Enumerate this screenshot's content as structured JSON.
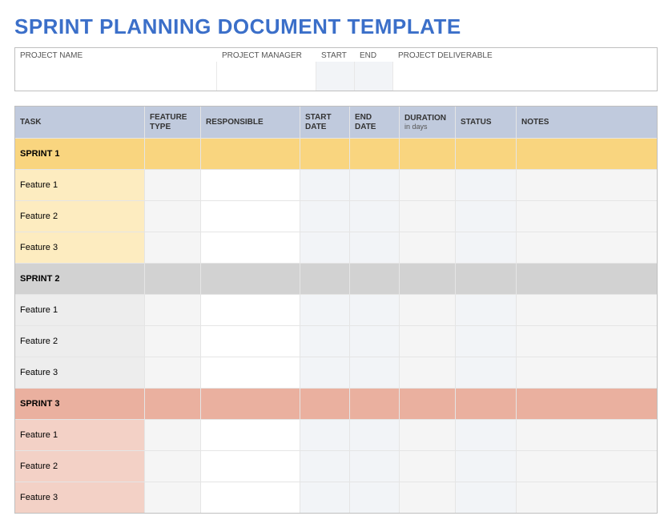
{
  "title": {
    "text": "SPRINT PLANNING DOCUMENT TEMPLATE",
    "color": "#3b6fc9"
  },
  "meta": {
    "labels": {
      "project_name": "PROJECT NAME",
      "project_manager": "PROJECT MANAGER",
      "start": "START",
      "end": "END",
      "project_deliverable": "PROJECT DELIVERABLE"
    },
    "widths": {
      "project_name": 252,
      "project_manager": 124,
      "start": 48,
      "end": 48
    },
    "input_bg": {
      "start": "#f2f4f7",
      "end": "#f2f4f7",
      "default": "#ffffff"
    }
  },
  "columns": [
    {
      "key": "task",
      "label": "TASK"
    },
    {
      "key": "feature_type",
      "label": "FEATURE TYPE"
    },
    {
      "key": "responsible",
      "label": "RESPONSIBLE"
    },
    {
      "key": "start_date",
      "label": "START DATE"
    },
    {
      "key": "end_date",
      "label": "END DATE"
    },
    {
      "key": "duration",
      "label": "DURATION",
      "sub": "in days"
    },
    {
      "key": "status",
      "label": "STATUS"
    },
    {
      "key": "notes",
      "label": "NOTES"
    }
  ],
  "header_bg": "#c0cadd",
  "odd_col_bg": "#f2f4f7",
  "even_col_bg": "#f5f5f5",
  "white_bg": "#ffffff",
  "groups": [
    {
      "label": "SPRINT 1",
      "header_color": "#f9d57f",
      "row_color": "#fdecc0",
      "features": [
        "Feature 1",
        "Feature 2",
        "Feature 3"
      ]
    },
    {
      "label": "SPRINT 2",
      "header_color": "#d2d2d2",
      "row_color": "#ededed",
      "features": [
        "Feature 1",
        "Feature 2",
        "Feature 3"
      ]
    },
    {
      "label": "SPRINT 3",
      "header_color": "#eab09f",
      "row_color": "#f3d1c6",
      "features": [
        "Feature 1",
        "Feature 2",
        "Feature 3"
      ]
    }
  ]
}
